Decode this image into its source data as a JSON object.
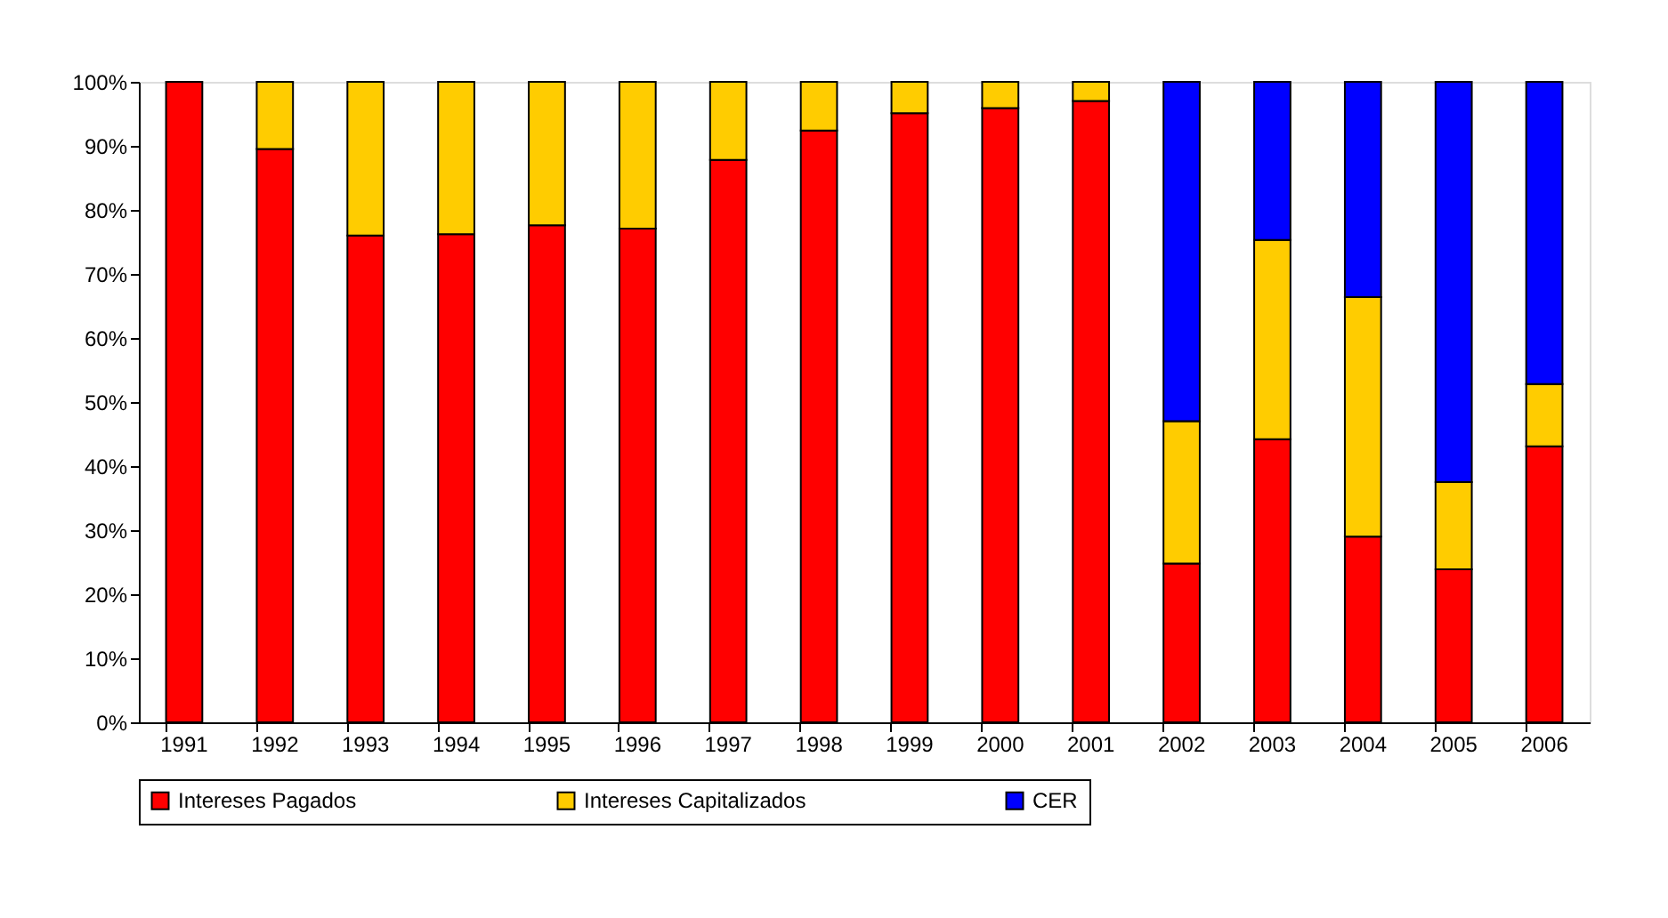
{
  "chart_data": {
    "type": "bar",
    "stacked": true,
    "categories": [
      "1991",
      "1992",
      "1993",
      "1994",
      "1995",
      "1996",
      "1997",
      "1998",
      "1999",
      "2000",
      "2001",
      "2002",
      "2003",
      "2004",
      "2005",
      "2006"
    ],
    "series": [
      {
        "name": "Intereses Pagados",
        "color": "#ff0000",
        "values": [
          100,
          89.5,
          76.0,
          76.2,
          77.6,
          77.1,
          87.8,
          92.4,
          95.1,
          95.9,
          97.0,
          24.8,
          44.2,
          29.0,
          23.9,
          43.1
        ]
      },
      {
        "name": "Intereses Capitalizados",
        "color": "#ffcc00",
        "values": [
          0,
          10.5,
          24.0,
          23.8,
          22.4,
          22.9,
          12.2,
          7.6,
          4.9,
          4.1,
          3.0,
          22.2,
          31.1,
          37.4,
          13.6,
          9.7
        ]
      },
      {
        "name": "CER",
        "color": "#0000ff",
        "values": [
          0,
          0,
          0,
          0,
          0,
          0,
          0,
          0,
          0,
          0,
          0,
          53.0,
          24.7,
          33.6,
          62.5,
          47.2
        ]
      }
    ],
    "ylim": [
      0,
      100
    ],
    "yticks": [
      {
        "value": 0,
        "label": "0%"
      },
      {
        "value": 10,
        "label": "10%"
      },
      {
        "value": 20,
        "label": "20%"
      },
      {
        "value": 30,
        "label": "30%"
      },
      {
        "value": 40,
        "label": "40%"
      },
      {
        "value": 50,
        "label": "50%"
      },
      {
        "value": 60,
        "label": "60%"
      },
      {
        "value": 70,
        "label": "70%"
      },
      {
        "value": 80,
        "label": "80%"
      },
      {
        "value": 90,
        "label": "90%"
      },
      {
        "value": 100,
        "label": "100%"
      }
    ],
    "grid": false,
    "legend": "bottom"
  }
}
